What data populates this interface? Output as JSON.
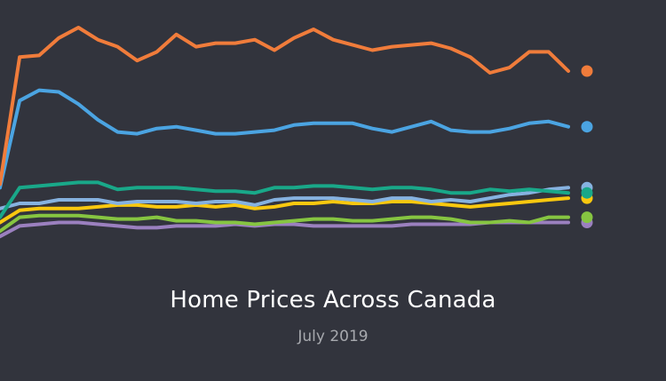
{
  "chart_data": {
    "type": "line",
    "title": "Home Prices Across Canada",
    "subtitle": "July 2019",
    "xlabel": "",
    "ylabel": "",
    "grid": false,
    "legend": "none",
    "n_points": 30,
    "series": [
      {
        "color": "#f07c3b",
        "values": [
          0.1,
          0.83,
          0.84,
          0.94,
          1.0,
          0.93,
          0.89,
          0.81,
          0.86,
          0.96,
          0.89,
          0.91,
          0.91,
          0.93,
          0.87,
          0.94,
          0.99,
          0.93,
          0.9,
          0.87,
          0.89,
          0.9,
          0.91,
          0.88,
          0.83,
          0.74,
          0.77,
          0.86,
          0.86,
          0.75
        ]
      },
      {
        "color": "#4ba4e2",
        "values": [
          0.08,
          0.58,
          0.64,
          0.63,
          0.56,
          0.47,
          0.4,
          0.39,
          0.42,
          0.43,
          0.41,
          0.39,
          0.39,
          0.4,
          0.41,
          0.44,
          0.45,
          0.45,
          0.45,
          0.42,
          0.4,
          0.43,
          0.46,
          0.41,
          0.4,
          0.4,
          0.42,
          0.45,
          0.46,
          0.43
        ]
      },
      {
        "color": "#19a889",
        "values": [
          -0.09,
          0.08,
          0.09,
          0.1,
          0.11,
          0.11,
          0.07,
          0.08,
          0.08,
          0.08,
          0.07,
          0.06,
          0.06,
          0.05,
          0.08,
          0.08,
          0.09,
          0.09,
          0.08,
          0.07,
          0.08,
          0.08,
          0.07,
          0.05,
          0.05,
          0.07,
          0.06,
          0.07,
          0.06,
          0.05
        ]
      },
      {
        "color": "#86b2e0",
        "values": [
          -0.04,
          -0.01,
          -0.01,
          0.01,
          0.01,
          0.01,
          -0.01,
          0.0,
          0.0,
          0.0,
          -0.01,
          0.0,
          0.0,
          -0.02,
          0.01,
          0.02,
          0.02,
          0.02,
          0.01,
          0.0,
          0.02,
          0.02,
          0.0,
          0.01,
          0.0,
          0.02,
          0.04,
          0.05,
          0.07,
          0.08
        ]
      },
      {
        "color": "#f9c80f",
        "values": [
          -0.12,
          -0.05,
          -0.04,
          -0.04,
          -0.04,
          -0.03,
          -0.02,
          -0.02,
          -0.03,
          -0.03,
          -0.02,
          -0.03,
          -0.02,
          -0.04,
          -0.03,
          -0.01,
          -0.01,
          0.0,
          -0.01,
          -0.01,
          0.0,
          0.0,
          -0.01,
          -0.02,
          -0.03,
          -0.02,
          -0.01,
          0.0,
          0.01,
          0.02
        ]
      },
      {
        "color": "#86c541",
        "values": [
          -0.17,
          -0.09,
          -0.08,
          -0.08,
          -0.08,
          -0.09,
          -0.1,
          -0.1,
          -0.09,
          -0.11,
          -0.11,
          -0.12,
          -0.12,
          -0.13,
          -0.12,
          -0.11,
          -0.1,
          -0.1,
          -0.11,
          -0.11,
          -0.1,
          -0.09,
          -0.09,
          -0.1,
          -0.12,
          -0.12,
          -0.11,
          -0.12,
          -0.09,
          -0.09
        ]
      },
      {
        "color": "#9b80bf",
        "values": [
          -0.2,
          -0.14,
          -0.13,
          -0.12,
          -0.12,
          -0.13,
          -0.14,
          -0.15,
          -0.15,
          -0.14,
          -0.14,
          -0.14,
          -0.13,
          -0.14,
          -0.13,
          -0.13,
          -0.14,
          -0.14,
          -0.14,
          -0.14,
          -0.14,
          -0.13,
          -0.13,
          -0.13,
          -0.13,
          -0.12,
          -0.12,
          -0.12,
          -0.12,
          -0.12
        ]
      }
    ]
  }
}
